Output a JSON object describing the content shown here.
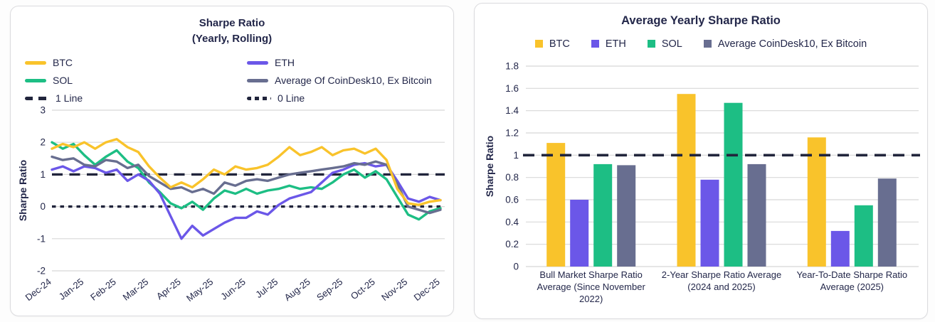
{
  "colors": {
    "btc": "#F9C32B",
    "eth": "#6B57E8",
    "sol": "#1DBE84",
    "coindesk_avg": "#686E90",
    "reference_dash": "#21253C",
    "grid": "#D8D8D8",
    "text_primary": "#23274A",
    "card_border": "#DBDBDE",
    "card_bg": "#FFFFFF"
  },
  "chart_data": [
    {
      "type": "line",
      "title": "Sharpe Ratio",
      "subtitle": "(Yearly, Rolling)",
      "ylabel": "Sharpe Ratio",
      "ylim": [
        -2,
        3
      ],
      "yticks": [
        3,
        2,
        1,
        0,
        -1,
        -2
      ],
      "grid": "horizontal",
      "legend_position": "top",
      "x_range": [
        0,
        12
      ],
      "x_tick_labels": [
        "Dec-24",
        "Jan-25",
        "Feb-25",
        "Mar-25",
        "Apr-25",
        "May-25",
        "Jun-25",
        "Jul-25",
        "Aug-25",
        "Sep-25",
        "Oct-25",
        "Nov-25",
        "Dec-25"
      ],
      "legend": [
        {
          "label": "BTC",
          "color": "#F9C32B",
          "swatch": "solid"
        },
        {
          "label": "ETH",
          "color": "#6B57E8",
          "swatch": "solid"
        },
        {
          "label": "SOL",
          "color": "#1DBE84",
          "swatch": "solid"
        },
        {
          "label": "Average Of CoinDesk10, Ex Bitcoin",
          "color": "#686E90",
          "swatch": "solid"
        },
        {
          "label": "1 Line",
          "color": "#21253C",
          "swatch": "dash-long"
        },
        {
          "label": "0 Line",
          "color": "#21253C",
          "swatch": "dash-short"
        }
      ],
      "reference_lines": [
        {
          "label": "1 Line",
          "value": 1,
          "dash": "long"
        },
        {
          "label": "0 Line",
          "value": 0,
          "dash": "short"
        }
      ],
      "series": [
        {
          "name": "BTC",
          "color": "#F9C32B",
          "values": [
            1.8,
            1.95,
            1.85,
            2.0,
            1.8,
            2.0,
            2.1,
            1.85,
            1.7,
            1.25,
            0.9,
            0.6,
            0.75,
            0.6,
            0.85,
            1.15,
            1.0,
            1.25,
            1.15,
            1.2,
            1.3,
            1.55,
            1.85,
            1.6,
            1.7,
            1.85,
            1.6,
            1.75,
            1.8,
            1.65,
            1.8,
            1.45,
            0.55,
            0.1,
            0.05,
            0.15,
            0.2
          ]
        },
        {
          "name": "ETH",
          "color": "#6B57E8",
          "values": [
            1.15,
            1.25,
            1.1,
            1.25,
            1.2,
            1.05,
            1.15,
            0.8,
            1.0,
            0.8,
            0.4,
            -0.3,
            -1.0,
            -0.6,
            -0.9,
            -0.7,
            -0.5,
            -0.35,
            -0.35,
            -0.15,
            -0.25,
            0.05,
            0.25,
            0.35,
            0.45,
            0.75,
            1.05,
            1.15,
            1.3,
            1.35,
            1.25,
            1.3,
            0.8,
            0.25,
            0.15,
            0.3,
            0.2
          ]
        },
        {
          "name": "SOL",
          "color": "#1DBE84",
          "values": [
            2.0,
            1.8,
            1.95,
            1.6,
            1.3,
            1.55,
            1.75,
            1.4,
            1.2,
            0.75,
            0.45,
            0.1,
            -0.05,
            0.15,
            -0.1,
            0.25,
            0.5,
            0.4,
            0.55,
            0.4,
            0.5,
            0.55,
            0.65,
            0.55,
            0.6,
            0.55,
            0.75,
            1.0,
            1.15,
            0.9,
            1.1,
            0.85,
            0.3,
            -0.25,
            -0.4,
            -0.15,
            -0.05
          ]
        },
        {
          "name": "Average Of CoinDesk10, Ex Bitcoin",
          "color": "#686E90",
          "values": [
            1.55,
            1.45,
            1.5,
            1.3,
            1.25,
            1.45,
            1.4,
            1.2,
            1.3,
            0.95,
            0.75,
            0.55,
            0.6,
            0.45,
            0.55,
            0.4,
            0.75,
            0.65,
            0.8,
            0.85,
            0.8,
            0.9,
            1.0,
            1.05,
            1.1,
            1.15,
            1.2,
            1.25,
            1.35,
            1.3,
            1.4,
            1.3,
            0.7,
            0.0,
            -0.1,
            -0.2,
            -0.1
          ]
        }
      ]
    },
    {
      "type": "bar",
      "title": "Average Yearly Sharpe Ratio",
      "ylabel": "Sharpe Ratio",
      "ylim": [
        0,
        1.8
      ],
      "yticks": [
        1.8,
        1.6,
        1.4,
        1.2,
        1,
        0.8,
        0.6,
        0.4,
        0.2,
        0
      ],
      "grid": "horizontal",
      "legend_position": "top",
      "categories": [
        "Bull Market Sharpe Ratio Average (Since November 2022)",
        "2-Year Sharpe Ratio Average (2024 and 2025)",
        "Year-To-Date Sharpe Ratio Average (2025)"
      ],
      "legend": [
        {
          "label": "BTC",
          "color": "#F9C32B"
        },
        {
          "label": "ETH",
          "color": "#6B57E8"
        },
        {
          "label": "SOL",
          "color": "#1DBE84"
        },
        {
          "label": "Average CoinDesk10, Ex Bitcoin",
          "color": "#686E90"
        }
      ],
      "reference_line": {
        "value": 1,
        "dash": "long"
      },
      "series": [
        {
          "name": "BTC",
          "color": "#F9C32B",
          "values": [
            1.11,
            1.55,
            1.16
          ]
        },
        {
          "name": "ETH",
          "color": "#6B57E8",
          "values": [
            0.6,
            0.78,
            0.32
          ]
        },
        {
          "name": "SOL",
          "color": "#1DBE84",
          "values": [
            0.92,
            1.47,
            0.55
          ]
        },
        {
          "name": "Average CoinDesk10, Ex Bitcoin",
          "color": "#686E90",
          "values": [
            0.91,
            0.92,
            0.79
          ]
        }
      ]
    }
  ]
}
